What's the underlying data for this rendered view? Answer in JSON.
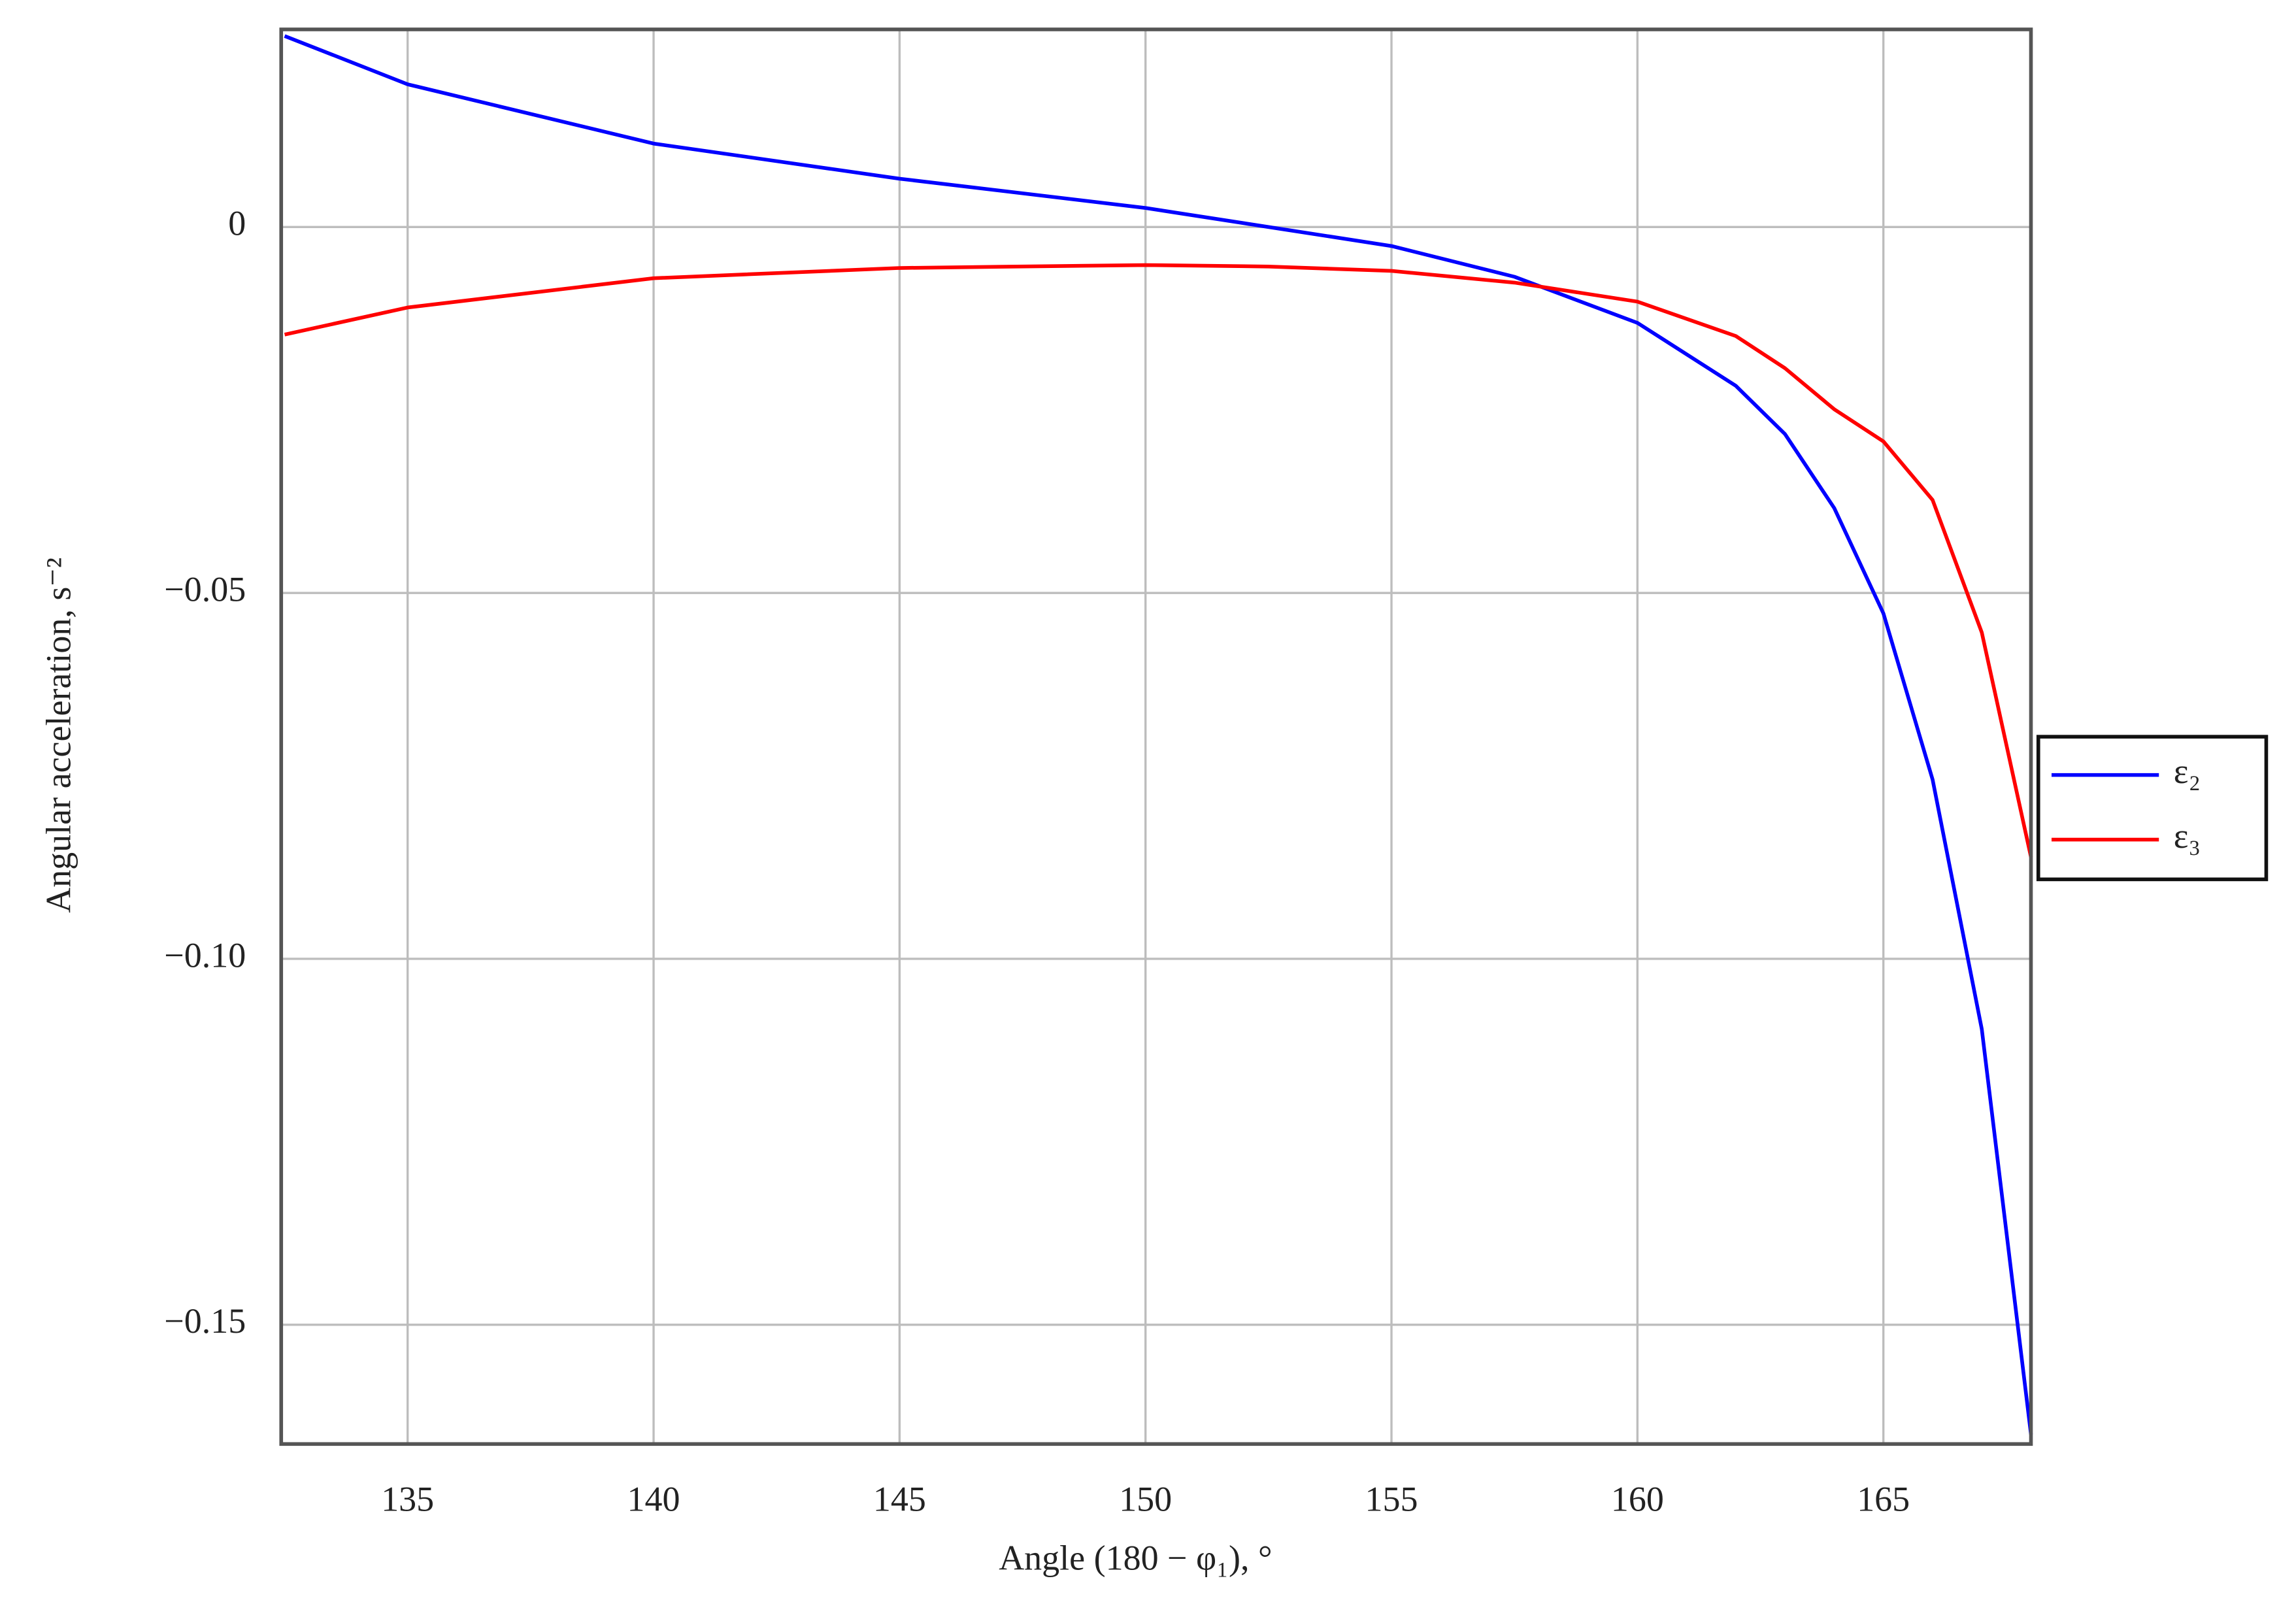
{
  "chart_data": {
    "type": "line",
    "xlabel": "Angle (180 − φ₁), °",
    "ylabel": "Angular acceleration, s⁻²",
    "xlim": [
      132.43,
      168
    ],
    "ylim": [
      -0.1663,
      0.027
    ],
    "xticks": [
      135,
      140,
      145,
      150,
      155,
      160,
      165
    ],
    "yticks": [
      0,
      {
        "value": -0.05,
        "label": "−0.05"
      },
      {
        "value": -0.1,
        "label": "−0.10"
      },
      {
        "value": -0.15,
        "label": "−0.15"
      }
    ],
    "grid": true,
    "legend": "right",
    "x": [
      132.5,
      135,
      140,
      145,
      150,
      152.5,
      155,
      157.5,
      160,
      162,
      163,
      164,
      165,
      166,
      167,
      168
    ],
    "series": [
      {
        "name": "ε₂",
        "color": "#0000ff",
        "values": [
          0.0261,
          0.0195,
          0.0114,
          0.0066,
          0.0026,
          0,
          -0.0026,
          -0.0068,
          -0.0131,
          -0.0217,
          -0.0283,
          -0.0384,
          -0.0528,
          -0.0755,
          -0.1096,
          -0.165
        ]
      },
      {
        "name": "ε₃",
        "color": "#ff0000",
        "values": [
          -0.0147,
          -0.011,
          -0.007,
          -0.0056,
          -0.0052,
          -0.0054,
          -0.006,
          -0.0076,
          -0.0102,
          -0.0149,
          -0.0193,
          -0.0249,
          -0.0293,
          -0.0373,
          -0.0554,
          -0.0861
        ]
      }
    ]
  }
}
